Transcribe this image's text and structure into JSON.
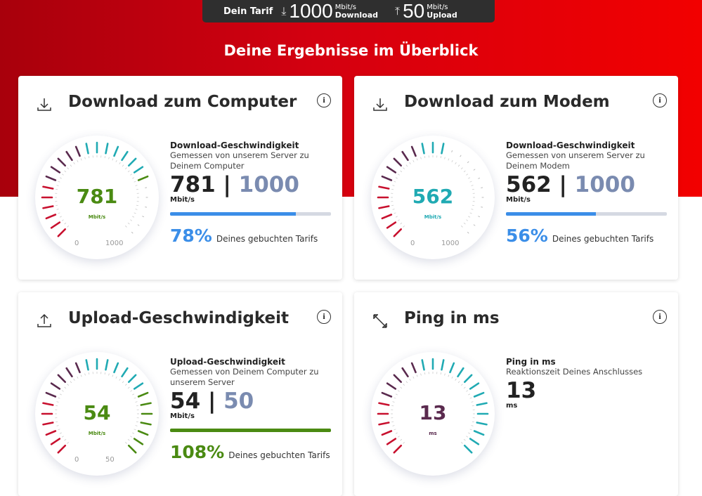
{
  "tarif": {
    "label": "Dein Tarif",
    "download_value": "1000",
    "download_unit": "Mbit/s",
    "download_label": "Download",
    "upload_value": "50",
    "upload_unit": "Mbit/s",
    "upload_label": "Upload"
  },
  "heading": "Deine Ergebnisse im Überblick",
  "colors": {
    "red": "#c8102e",
    "purple": "#5a2a4e",
    "teal": "#20aab3",
    "green": "#4a8a12",
    "blue": "#3b8ee8",
    "grey_max": "#7a8bb0"
  },
  "cards": [
    {
      "title": "Download zum Computer",
      "icon": "download-icon",
      "info": "i",
      "gauge": {
        "value": 781,
        "max": 1000,
        "label": "781",
        "unit": "Mbit/s",
        "min_label": "0",
        "max_label": "1000",
        "color": "#4a8a12",
        "scheme": "speed"
      },
      "detail": {
        "title": "Download-Geschwindigkeit",
        "subtitle": "Gemessen von unserem Server zu Deinem Computer",
        "value": "781",
        "sep": "|",
        "max": "1000",
        "unit": "Mbit/s",
        "progress": 78,
        "bar_color": "#3b8ee8",
        "percent": "78%",
        "percent_color": "#3b8ee8",
        "percent_text": "Deines gebuchten Tarifs"
      }
    },
    {
      "title": "Download zum Modem",
      "icon": "download-icon",
      "info": "i",
      "gauge": {
        "value": 562,
        "max": 1000,
        "label": "562",
        "unit": "Mbit/s",
        "min_label": "0",
        "max_label": "1000",
        "color": "#20aab3",
        "scheme": "speed"
      },
      "detail": {
        "title": "Download-Geschwindigkeit",
        "subtitle": "Gemessen von unserem Server zu Deinem Modem",
        "value": "562",
        "sep": "|",
        "max": "1000",
        "unit": "Mbit/s",
        "progress": 56,
        "bar_color": "#3b8ee8",
        "percent": "56%",
        "percent_color": "#3b8ee8",
        "percent_text": "Deines gebuchten Tarifs"
      }
    },
    {
      "title": "Upload-Geschwindigkeit",
      "icon": "upload-icon",
      "info": "i",
      "gauge": {
        "value": 54,
        "max": 50,
        "label": "54",
        "unit": "Mbit/s",
        "min_label": "0",
        "max_label": "50",
        "color": "#4a8a12",
        "scheme": "speed"
      },
      "detail": {
        "title": "Upload-Geschwindigkeit",
        "subtitle": "Gemessen von Deinem Computer zu unserem Server",
        "value": "54",
        "sep": "|",
        "max": "50",
        "unit": "Mbit/s",
        "progress": 100,
        "bar_color": "#4a8a12",
        "percent": "108%",
        "percent_color": "#4a8a12",
        "percent_text": "Deines gebuchten Tarifs"
      }
    },
    {
      "title": "Ping in ms",
      "icon": "ping-arrows-icon",
      "info": "i",
      "gauge": {
        "value": 1,
        "max": 1,
        "label": "13",
        "unit": "ms",
        "color": "#5a2a4e",
        "scheme": "ping"
      },
      "detail": {
        "title": "Ping in ms",
        "subtitle": "Reaktionszeit Deines Anschlusses",
        "value": "13",
        "unit": "ms"
      }
    }
  ]
}
